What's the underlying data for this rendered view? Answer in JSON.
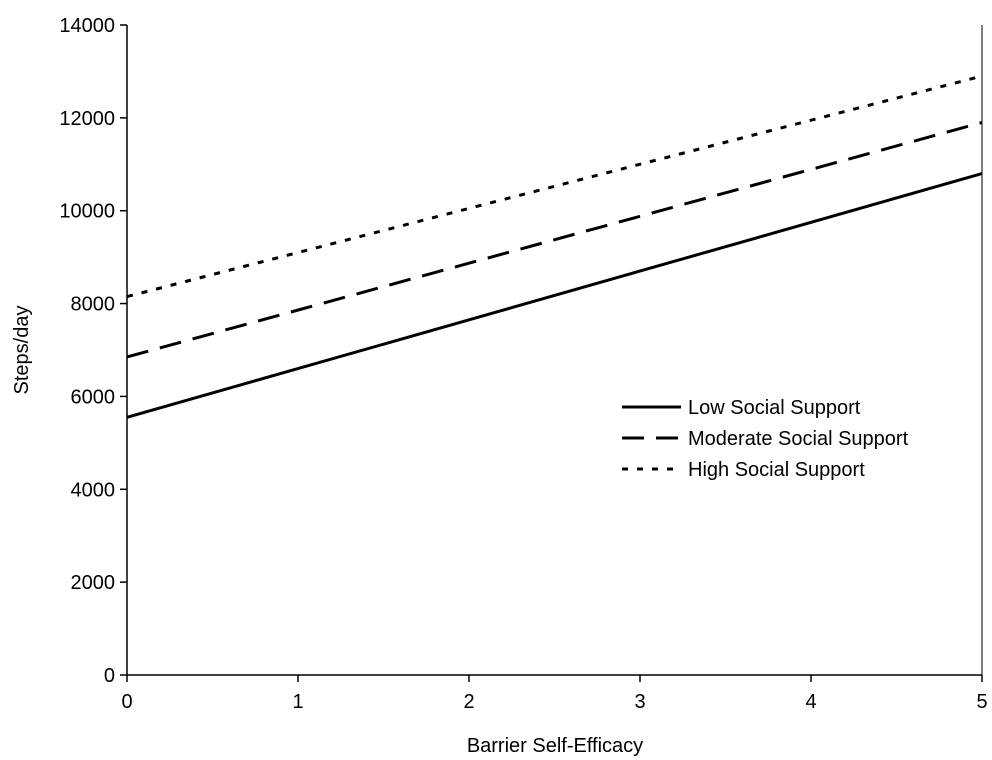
{
  "chart_data": {
    "type": "line",
    "title": "",
    "xlabel": "Barrier Self-Efficacy",
    "ylabel": "Steps/day",
    "xlim": [
      0,
      5
    ],
    "ylim": [
      0,
      14000
    ],
    "x_ticks": [
      0,
      1,
      2,
      3,
      4,
      5
    ],
    "y_ticks": [
      0,
      2000,
      4000,
      6000,
      8000,
      10000,
      12000,
      14000
    ],
    "x_tick_labels": [
      "0",
      "1",
      "2",
      "3",
      "4",
      "5"
    ],
    "y_tick_labels": [
      "0",
      "2000",
      "4000",
      "6000",
      "8000",
      "10000",
      "12000",
      "14000"
    ],
    "grid": false,
    "legend_position": "right-middle",
    "series": [
      {
        "name": "Low Social Support",
        "line_style": "solid",
        "x": [
          0,
          5
        ],
        "y": [
          5550,
          10800
        ]
      },
      {
        "name": "Moderate Social Support",
        "line_style": "dashed",
        "x": [
          0,
          5
        ],
        "y": [
          6850,
          11900
        ]
      },
      {
        "name": "High Social Support",
        "line_style": "dotted",
        "x": [
          0,
          5
        ],
        "y": [
          8150,
          12900
        ]
      }
    ],
    "colors": {
      "line": "#000000",
      "axis": "#000000",
      "background": "#ffffff"
    }
  }
}
